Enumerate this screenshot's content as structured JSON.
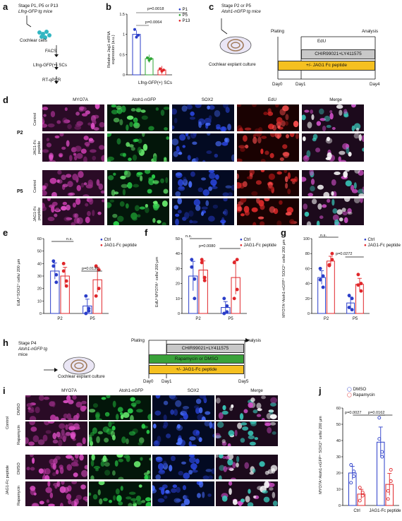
{
  "colors": {
    "blue": "#2b3ec9",
    "green": "#2fa635",
    "red": "#e0262a",
    "magenta": "#d040c8",
    "gray": "#c8c8c8",
    "orange": "#f5c020",
    "darkgreen": "#3aa23a"
  },
  "a": {
    "label": "a",
    "line1": "Stage P1, P5 or P13",
    "line2": "Lfng-GFP tg mice",
    "cells": "Cochlear cells",
    "facs": "FACS",
    "sc": "Lfng-GFP(+) SCs",
    "pcr": "RT-qPCR"
  },
  "b": {
    "label": "b",
    "ylabel": "Relative Jag1 mRNA expression (a.u.)",
    "xlabel": "Lfng-GFP(+) SCs",
    "p1": "p=0.0018",
    "p2": "p=0.0064"
  },
  "c": {
    "label": "c",
    "line1": "Stage P2 or P5",
    "line2": "Atoh1-nGFP tg mice",
    "culture": "Cochlear explant culture",
    "plating": "Plating",
    "analysis": "Analysis",
    "edu": "EdU",
    "chir": "CHIR99021+LY411575",
    "jag": "+/- JAG1 Fc peptide",
    "days": [
      "Day0",
      "Day1",
      "Day4"
    ]
  },
  "d": {
    "label": "d",
    "cols": [
      "MYO7A",
      "Atoh1-nGFP",
      "SOX2",
      "EdU",
      "Merge"
    ],
    "ages": [
      "P2",
      "P5"
    ],
    "rows": [
      "Control",
      "JAG1-Fc peptide",
      "Control",
      "JAG1-Fc peptide"
    ]
  },
  "e": {
    "label": "e",
    "ylabel": "EdU⁺SOX2⁺ cells/ 200 µm",
    "ns": "n.s.",
    "p": "p=0.0130",
    "legend": [
      "Ctrl",
      "JAG1-Fc peptide"
    ]
  },
  "f": {
    "label": "f",
    "ylabel": "EdU⁺MYO7A⁺ cells/ 200 µm",
    "ns": "n.s.",
    "p": "p=0.0080",
    "legend": [
      "Ctrl",
      "JAG1-Fc peptide"
    ]
  },
  "g": {
    "label": "g",
    "ylabel": "MYO7A⁺Atoh1-nGFP⁺ SOX2⁺ cells/ 200 µm",
    "ns": "n.s.",
    "p": "p=0.0272",
    "legend": [
      "Ctrl",
      "JAG1-Fc peptide"
    ]
  },
  "h": {
    "label": "h",
    "line1": "Stage P4",
    "line2": "Atoh1-nGFP tg",
    "line3": "mice",
    "culture": "Cochlear explant culture",
    "plating": "Plating",
    "analysis": "Analysis",
    "chir": "CHIR99021+LY411575",
    "rapa": "Rapamycin or DMSO",
    "jag": "+/- JAG1-Fc peptide",
    "days": [
      "Day0",
      "Day1",
      "Day5"
    ]
  },
  "i": {
    "label": "i",
    "cols": [
      "MYO7A",
      "Atoh1-nGFP",
      "SOX2",
      "Merge"
    ],
    "groups": [
      "Control",
      "JAG1-Fc peptide"
    ],
    "rows": [
      "DMSO",
      "Rapamycin",
      "DMSO",
      "Rapamycin"
    ]
  },
  "j": {
    "label": "j",
    "ylabel": "MYO7A⁺Atoh1-nGFP⁺ SOX2⁺ cells/ 200 µm",
    "p1": "p=0.0027",
    "p2": "p=0.0162",
    "legend": [
      "DMSO",
      "Rapamycin"
    ]
  },
  "chart_data": [
    {
      "panel": "b",
      "type": "bar",
      "categories": [
        "P1",
        "P5",
        "P13"
      ],
      "values": [
        1.0,
        0.4,
        0.12
      ],
      "ylim": [
        0,
        1.5
      ],
      "yticks": [
        0,
        0.5,
        1.0,
        1.5
      ],
      "points": [
        [
          1.12,
          0.93,
          0.98
        ],
        [
          0.42,
          0.36,
          0.4
        ],
        [
          0.15,
          0.09,
          0.12
        ]
      ],
      "legend": [
        "P1",
        "P5",
        "P13"
      ]
    },
    {
      "panel": "e",
      "type": "bar",
      "groups": [
        "P2",
        "P5"
      ],
      "series": [
        {
          "name": "Ctrl",
          "values": [
            34,
            6
          ]
        },
        {
          "name": "JAG1-Fc peptide",
          "values": [
            30,
            27
          ]
        }
      ],
      "ylim": [
        0,
        60
      ],
      "yticks": [
        0,
        10,
        20,
        30,
        40,
        50,
        60
      ],
      "points": [
        [
          [
            38,
            25,
            42,
            31
          ],
          [
            0,
            2,
            14,
            4
          ]
        ],
        [
          [
            40,
            22,
            34,
            26
          ],
          [
            38,
            20,
            14,
            35
          ]
        ]
      ]
    },
    {
      "panel": "f",
      "type": "bar",
      "groups": [
        "P2",
        "P5"
      ],
      "series": [
        {
          "name": "Ctrl",
          "values": [
            25,
            4
          ]
        },
        {
          "name": "JAG1-Fc peptide",
          "values": [
            29,
            24
          ]
        }
      ],
      "ylim": [
        0,
        50
      ],
      "yticks": [
        0,
        10,
        20,
        30,
        40,
        50
      ],
      "points": [
        [
          [
            31,
            10,
            36,
            23
          ],
          [
            0,
            1,
            10,
            5
          ]
        ],
        [
          [
            36,
            22,
            34,
            24
          ],
          [
            34,
            16,
            10,
            36
          ]
        ]
      ]
    },
    {
      "panel": "g",
      "type": "bar",
      "groups": [
        "P2",
        "P5"
      ],
      "series": [
        {
          "name": "Ctrl",
          "values": [
            48,
            14
          ]
        },
        {
          "name": "JAG1-Fc peptide",
          "values": [
            70,
            39
          ]
        }
      ],
      "ylim": [
        0,
        100
      ],
      "yticks": [
        0,
        20,
        40,
        60,
        80,
        100
      ],
      "points": [
        [
          [
            60,
            35,
            45,
            50
          ],
          [
            8,
            5,
            24,
            20
          ]
        ],
        [
          [
            65,
            80,
            64,
            72
          ],
          [
            52,
            30,
            38,
            40
          ]
        ]
      ]
    },
    {
      "panel": "j",
      "type": "bar",
      "groups": [
        "Ctrl",
        "JAG1-Fc peptide"
      ],
      "series": [
        {
          "name": "DMSO",
          "values": [
            20,
            39
          ]
        },
        {
          "name": "Rapamycin",
          "values": [
            7,
            13
          ]
        }
      ],
      "ylim": [
        0,
        60
      ],
      "yticks": [
        0,
        10,
        20,
        30,
        40,
        50,
        60
      ],
      "points": [
        [
          [
            25,
            18,
            14,
            21
          ],
          [
            54,
            30,
            41,
            33
          ]
        ],
        [
          [
            3,
            6,
            11,
            8
          ],
          [
            4,
            22,
            9,
            15
          ]
        ]
      ]
    }
  ]
}
